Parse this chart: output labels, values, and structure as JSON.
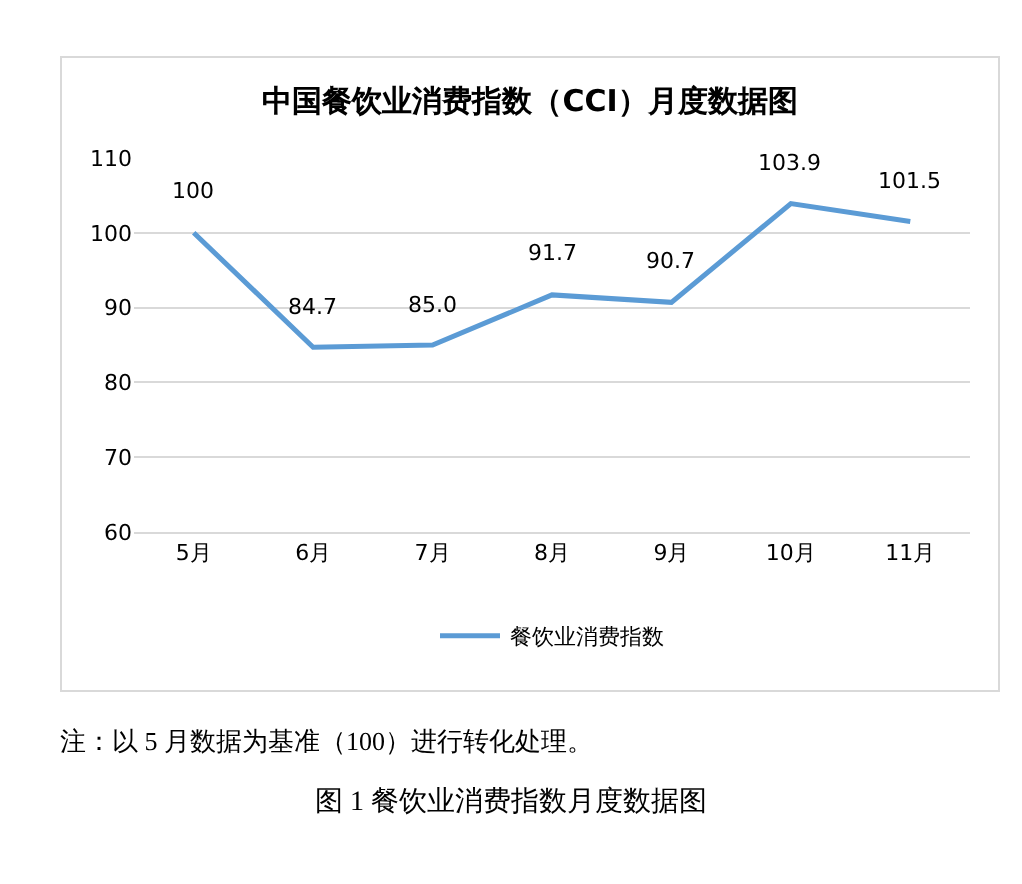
{
  "chart_data": {
    "type": "line",
    "title": "中国餐饮业消费指数（CCI）月度数据图",
    "categories": [
      "5月",
      "6月",
      "7月",
      "8月",
      "9月",
      "10月",
      "11月"
    ],
    "series": [
      {
        "name": "餐饮业消费指数",
        "color": "#5b9bd5",
        "values": [
          100,
          84.7,
          85.0,
          91.7,
          90.7,
          103.9,
          101.5
        ],
        "value_labels": [
          "100",
          "84.7",
          "85.0",
          "91.7",
          "90.7",
          "103.9",
          "101.5"
        ]
      }
    ],
    "ylim": [
      60,
      110
    ],
    "yticks": [
      60,
      70,
      80,
      90,
      100,
      110
    ],
    "grid": "y",
    "legend": "bottom",
    "marker": "none",
    "line_style": "solid",
    "annotations": [
      "注：以 5 月数据为基准（100）进行转化处理。",
      "图 1 餐饮业消费指数月度数据图"
    ]
  }
}
